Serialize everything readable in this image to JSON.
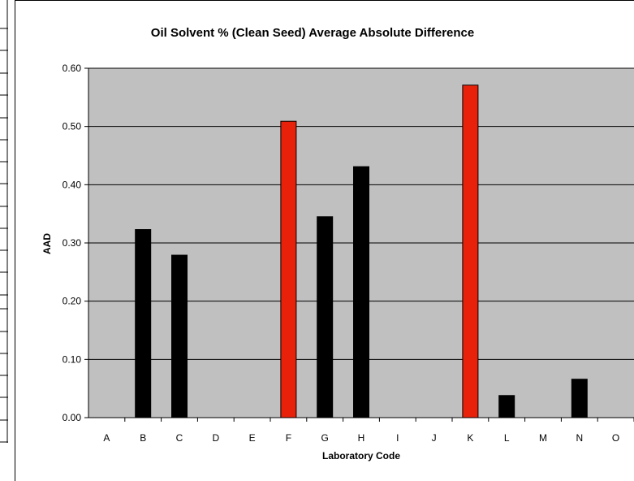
{
  "chart_data": {
    "type": "bar",
    "title": "Oil Solvent % (Clean Seed) Average Absolute Difference",
    "xlabel": "Laboratory Code",
    "ylabel": "AAD",
    "categories": [
      "A",
      "B",
      "C",
      "D",
      "E",
      "F",
      "G",
      "H",
      "I",
      "J",
      "K",
      "L",
      "M",
      "N",
      "O"
    ],
    "values": [
      0,
      0.323,
      0.279,
      0,
      0,
      0.509,
      0.345,
      0.431,
      0,
      0,
      0.571,
      0.038,
      0,
      0.066,
      0
    ],
    "highlighted": [
      "F",
      "K"
    ],
    "ylim": [
      0,
      0.6
    ],
    "yticks": [
      "0.00",
      "0.10",
      "0.20",
      "0.30",
      "0.40",
      "0.50",
      "0.60"
    ],
    "grid": true,
    "legend": "none",
    "colors": {
      "bar": "#000000",
      "highlight": "#e8220a",
      "plot_background": "#c0c0c0"
    }
  }
}
